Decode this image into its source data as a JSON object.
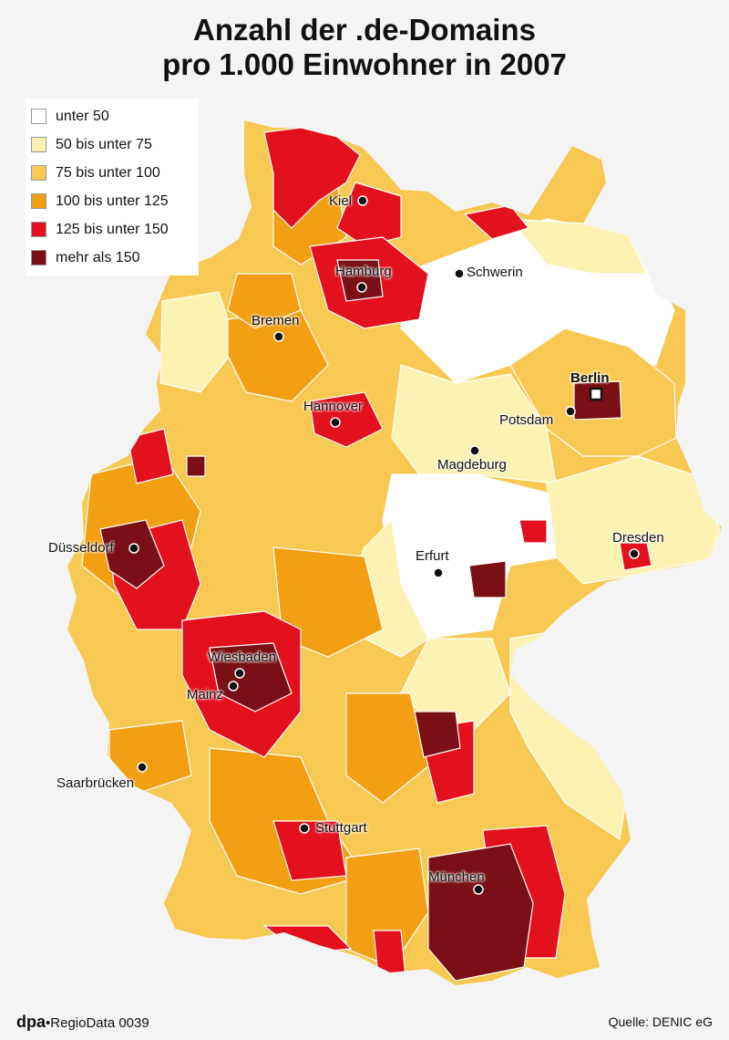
{
  "title": {
    "line1": "Anzahl der .de-Domains",
    "line2": "pro 1.000 Einwohner in 2007"
  },
  "legend": [
    {
      "label": "unter 50",
      "color": "#ffffff"
    },
    {
      "label": "50 bis unter 75",
      "color": "#fbf2b4"
    },
    {
      "label": "75 bis unter 100",
      "color": "#f8c952"
    },
    {
      "label": "100 bis unter 125",
      "color": "#f29f13"
    },
    {
      "label": "125 bis unter 150",
      "color": "#e3101d"
    },
    {
      "label": "mehr als 150",
      "color": "#7a1015"
    }
  ],
  "cities": [
    {
      "name": "Kiel",
      "bold": false
    },
    {
      "name": "Hamburg",
      "bold": false
    },
    {
      "name": "Schwerin",
      "bold": false
    },
    {
      "name": "Bremen",
      "bold": false
    },
    {
      "name": "Berlin",
      "bold": true
    },
    {
      "name": "Potsdam",
      "bold": false
    },
    {
      "name": "Hannover",
      "bold": false
    },
    {
      "name": "Magdeburg",
      "bold": false
    },
    {
      "name": "Düsseldorf",
      "bold": false
    },
    {
      "name": "Dresden",
      "bold": false
    },
    {
      "name": "Erfurt",
      "bold": false
    },
    {
      "name": "Wiesbaden",
      "bold": false
    },
    {
      "name": "Mainz",
      "bold": false
    },
    {
      "name": "Saarbrücken",
      "bold": false
    },
    {
      "name": "Stuttgart",
      "bold": false
    },
    {
      "name": "München",
      "bold": false
    }
  ],
  "footer": {
    "brand": "dpa",
    "series": "RegioData 0039",
    "source": "Quelle: DENIC eG"
  }
}
